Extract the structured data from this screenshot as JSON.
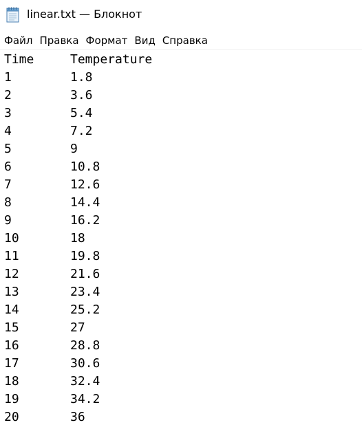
{
  "window": {
    "title": "linear.txt — Блокнот",
    "app_icon": "notepad-icon"
  },
  "menu": {
    "items": [
      "Файл",
      "Правка",
      "Формат",
      "Вид",
      "Справка"
    ]
  },
  "document": {
    "header": {
      "time": "Time",
      "temperature": "Temperature"
    },
    "rows": [
      {
        "time": "1",
        "temperature": "1.8"
      },
      {
        "time": "2",
        "temperature": "3.6"
      },
      {
        "time": "3",
        "temperature": "5.4"
      },
      {
        "time": "4",
        "temperature": "7.2"
      },
      {
        "time": "5",
        "temperature": "9"
      },
      {
        "time": "6",
        "temperature": "10.8"
      },
      {
        "time": "7",
        "temperature": "12.6"
      },
      {
        "time": "8",
        "temperature": "14.4"
      },
      {
        "time": "9",
        "temperature": "16.2"
      },
      {
        "time": "10",
        "temperature": "18"
      },
      {
        "time": "11",
        "temperature": "19.8"
      },
      {
        "time": "12",
        "temperature": "21.6"
      },
      {
        "time": "13",
        "temperature": "23.4"
      },
      {
        "time": "14",
        "temperature": "25.2"
      },
      {
        "time": "15",
        "temperature": "27"
      },
      {
        "time": "16",
        "temperature": "28.8"
      },
      {
        "time": "17",
        "temperature": "30.6"
      },
      {
        "time": "18",
        "temperature": "32.4"
      },
      {
        "time": "19",
        "temperature": "34.2"
      },
      {
        "time": "20",
        "temperature": "36"
      }
    ]
  }
}
